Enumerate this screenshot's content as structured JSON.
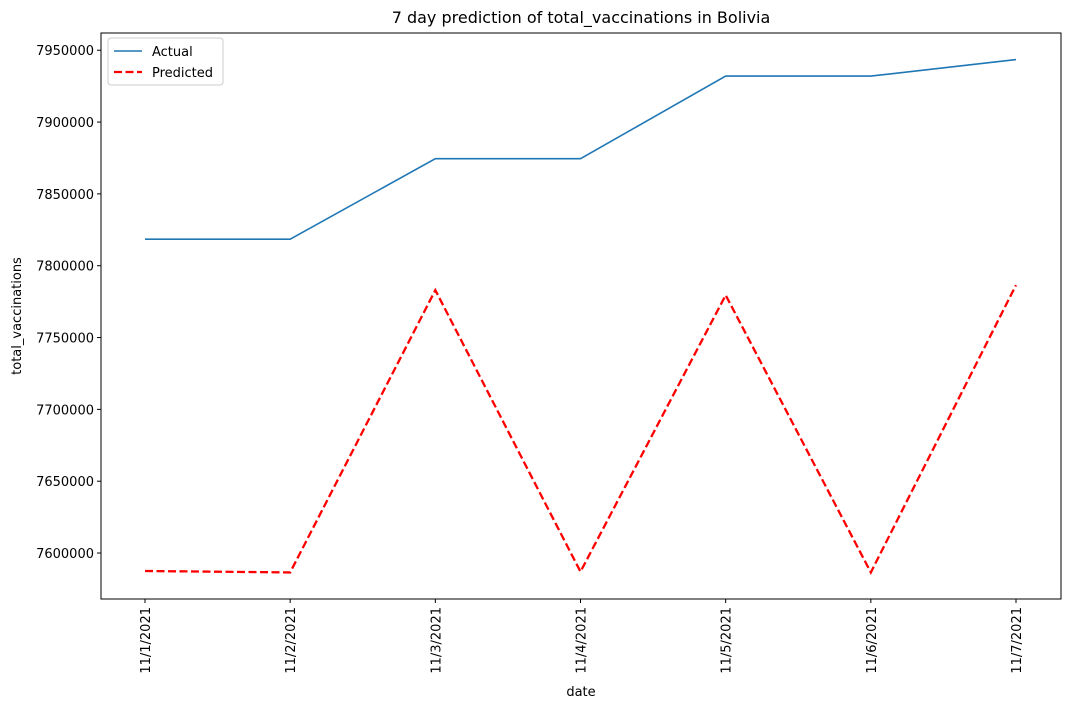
{
  "chart_data": {
    "type": "line",
    "title": "7 day prediction of total_vaccinations in Bolivia",
    "xlabel": "date",
    "ylabel": "total_vaccinations",
    "categories": [
      "11/1/2021",
      "11/2/2021",
      "11/3/2021",
      "11/4/2021",
      "11/5/2021",
      "11/6/2021",
      "11/7/2021"
    ],
    "ylim": [
      7568000,
      7962000
    ],
    "yticks": [
      7600000,
      7650000,
      7700000,
      7750000,
      7800000,
      7850000,
      7900000,
      7950000
    ],
    "grid": false,
    "legend": "top-left",
    "series": [
      {
        "name": "Actual",
        "color": "#1f77b4",
        "style": "solid",
        "values": [
          7818500,
          7818500,
          7874500,
          7874500,
          7932000,
          7932000,
          7943500
        ]
      },
      {
        "name": "Predicted",
        "color": "#ff0000",
        "style": "dashed",
        "values": [
          7587500,
          7586500,
          7783000,
          7587000,
          7779500,
          7586500,
          7786500
        ]
      }
    ]
  }
}
